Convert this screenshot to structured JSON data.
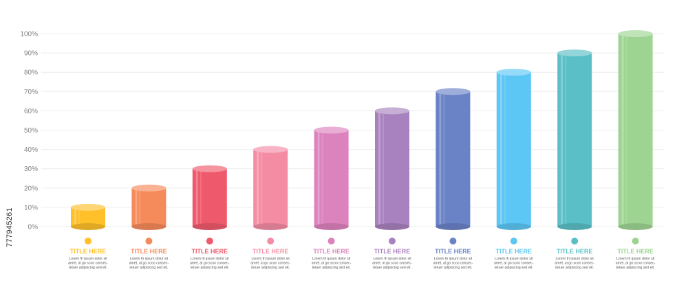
{
  "chart_data": {
    "type": "bar",
    "categories": [
      "TITLE HERE",
      "TITLE HERE",
      "TITLE HERE",
      "TITLE HERE",
      "TITLE HERE",
      "TITLE HERE",
      "TITLE HERE",
      "TITLE HERE",
      "TITLE HERE",
      "TITLE HERE"
    ],
    "values": [
      10,
      20,
      30,
      40,
      50,
      60,
      70,
      80,
      90,
      100
    ],
    "colors": [
      "#FFC02A",
      "#F58A5A",
      "#EE5A6C",
      "#F48CA4",
      "#DC82BC",
      "#A882BE",
      "#6A82C6",
      "#5CC6F4",
      "#5ABFC6",
      "#9ED492"
    ],
    "yticks": [
      "0%",
      "10%",
      "20%",
      "30%",
      "40%",
      "50%",
      "60%",
      "70%",
      "80%",
      "90%",
      "100%"
    ],
    "ylim": [
      0,
      100
    ],
    "grid": true,
    "title": "",
    "xlabel": "",
    "ylabel": "",
    "description_lines": [
      "Lorem th ipsum dolor sit",
      "amet, ai go scoo consec-",
      "tetuer adipiscing sed elt."
    ]
  },
  "watermark": {
    "id": "777945261"
  }
}
